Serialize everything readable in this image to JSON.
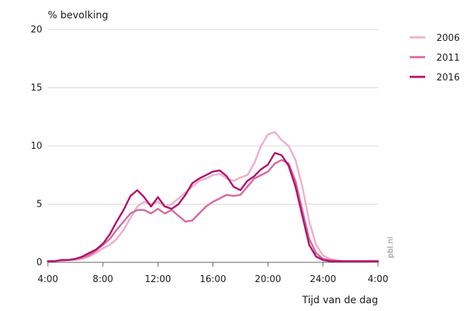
{
  "chart_data": {
    "type": "line",
    "ylabel": "% bevolking",
    "xlabel": "Tijd van de dag",
    "source": "pbl.nl",
    "ylim": [
      0,
      20
    ],
    "yticks": [
      0,
      5,
      10,
      15,
      20
    ],
    "xlim": [
      4,
      28
    ],
    "xticks": [
      {
        "value": 4,
        "label": "4:00"
      },
      {
        "value": 8,
        "label": "8:00"
      },
      {
        "value": 12,
        "label": "12:00"
      },
      {
        "value": 16,
        "label": "16:00"
      },
      {
        "value": 20,
        "label": "20:00"
      },
      {
        "value": 24,
        "label": "24:00"
      },
      {
        "value": 28,
        "label": "4:00"
      }
    ],
    "grid": true,
    "legend_position": "top-right",
    "x": [
      4,
      4.5,
      5,
      5.5,
      6,
      6.5,
      7,
      7.5,
      8,
      8.5,
      9,
      9.5,
      10,
      10.5,
      11,
      11.5,
      12,
      12.5,
      13,
      13.5,
      14,
      14.5,
      15,
      15.5,
      16,
      16.5,
      17,
      17.5,
      18,
      18.5,
      19,
      19.5,
      20,
      20.5,
      21,
      21.5,
      22,
      22.5,
      23,
      23.5,
      24,
      24.5,
      25,
      25.5,
      26,
      26.5,
      27,
      27.5,
      28
    ],
    "series": [
      {
        "name": "2006",
        "color": "#ecb0c9",
        "values": [
          0.1,
          0.1,
          0.1,
          0.2,
          0.2,
          0.3,
          0.5,
          0.8,
          1.2,
          1.5,
          2.0,
          2.8,
          3.8,
          4.8,
          5.2,
          5.0,
          5.2,
          4.8,
          5.0,
          5.5,
          6.0,
          6.5,
          7.0,
          7.2,
          7.5,
          7.6,
          7.2,
          7.0,
          7.3,
          7.5,
          8.5,
          10.0,
          11.0,
          11.2,
          10.5,
          10.0,
          8.8,
          6.5,
          3.5,
          1.5,
          0.6,
          0.3,
          0.2,
          0.1,
          0.1,
          0.1,
          0.1,
          0.1,
          0.1
        ]
      },
      {
        "name": "2011",
        "color": "#d66aa0",
        "values": [
          0.1,
          0.1,
          0.2,
          0.2,
          0.3,
          0.4,
          0.6,
          1.0,
          1.5,
          2.0,
          2.8,
          3.5,
          4.2,
          4.5,
          4.5,
          4.2,
          4.6,
          4.2,
          4.5,
          4.0,
          3.5,
          3.6,
          4.2,
          4.8,
          5.2,
          5.5,
          5.8,
          5.7,
          5.8,
          6.5,
          7.2,
          7.5,
          7.8,
          8.5,
          8.8,
          8.5,
          7.0,
          4.5,
          2.0,
          0.8,
          0.3,
          0.2,
          0.1,
          0.1,
          0.1,
          0.1,
          0.1,
          0.1,
          0.1
        ]
      },
      {
        "name": "2016",
        "color": "#b3126e",
        "values": [
          0.1,
          0.1,
          0.2,
          0.2,
          0.3,
          0.5,
          0.8,
          1.1,
          1.6,
          2.4,
          3.5,
          4.5,
          5.7,
          6.2,
          5.6,
          4.8,
          5.6,
          4.8,
          4.6,
          5.0,
          5.8,
          6.8,
          7.2,
          7.5,
          7.8,
          7.9,
          7.4,
          6.5,
          6.2,
          7.0,
          7.4,
          8.0,
          8.4,
          9.4,
          9.2,
          8.3,
          6.5,
          4.0,
          1.5,
          0.5,
          0.2,
          0.1,
          0.1,
          0.1,
          0.1,
          0.1,
          0.1,
          0.1,
          0.1
        ]
      }
    ]
  }
}
